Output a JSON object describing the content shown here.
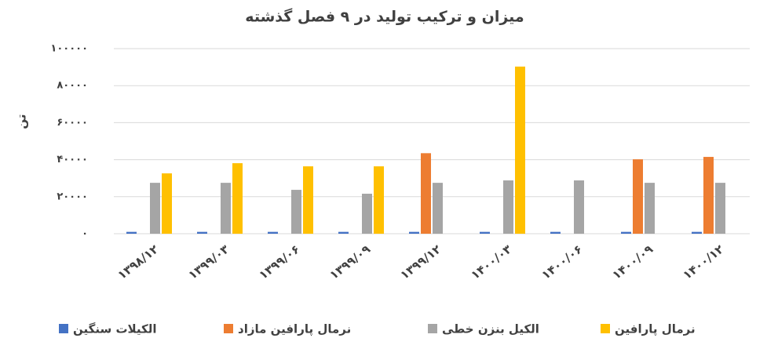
{
  "chart_data": {
    "type": "bar",
    "title": "میزان و ترکیب تولید در ۹ فصل گذشته",
    "y_label": "تن",
    "categories": [
      "۱۳۹۸/۱۲",
      "۱۳۹۹/۰۳",
      "۱۳۹۹/۰۶",
      "۱۳۹۹/۰۹",
      "۱۳۹۹/۱۲",
      "۱۴۰۰/۰۳",
      "۱۴۰۰/۰۶",
      "۱۴۰۰/۰۹",
      "۱۴۰۰/۱۲"
    ],
    "series": [
      {
        "name": "الکیلات سنگین",
        "color": "#4472c4",
        "values": [
          1000,
          1000,
          1000,
          1000,
          1000,
          1000,
          1000,
          1000,
          1000
        ]
      },
      {
        "name": "نرمال پارافین مازاد",
        "color": "#ed7d31",
        "values": [
          null,
          null,
          null,
          null,
          43500,
          null,
          null,
          40200,
          41500
        ]
      },
      {
        "name": "الکیل بنزن خطی",
        "color": "#a5a5a5",
        "values": [
          27500,
          27500,
          23700,
          21600,
          27500,
          28800,
          28800,
          27500,
          27500
        ]
      },
      {
        "name": "نرمال پارافین",
        "color": "#ffc000",
        "values": [
          32600,
          38100,
          36400,
          36400,
          null,
          90300,
          null,
          null,
          null
        ]
      }
    ],
    "ylim": [
      0,
      100000
    ],
    "yticks": [
      {
        "value": 0,
        "label": "۰"
      },
      {
        "value": 20000,
        "label": "۲۰۰۰۰"
      },
      {
        "value": 40000,
        "label": "۴۰۰۰۰"
      },
      {
        "value": 60000,
        "label": "۶۰۰۰۰"
      },
      {
        "value": 80000,
        "label": "۸۰۰۰۰"
      },
      {
        "value": 100000,
        "label": "۱۰۰۰۰۰"
      }
    ],
    "grid": true
  }
}
